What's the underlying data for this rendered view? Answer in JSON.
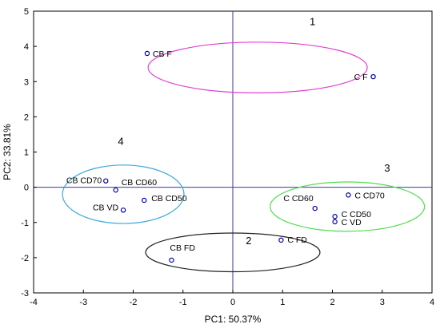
{
  "chart_data": {
    "type": "scatter",
    "title": "",
    "xlabel": "PC1: 50.37%",
    "ylabel": "PC2: 33.81%",
    "xlim": [
      -4,
      4
    ],
    "ylim": [
      -3,
      5
    ],
    "xticks": [
      -4,
      -3,
      -2,
      -1,
      0,
      1,
      2,
      3,
      4
    ],
    "yticks": [
      -3,
      -2,
      -1,
      0,
      1,
      2,
      3,
      4,
      5
    ],
    "grid": false,
    "reference_lines": {
      "x": 0,
      "y": 0
    },
    "point_color": "#0000aa",
    "points": [
      {
        "label": "CB F",
        "x": -1.72,
        "y": 3.8
      },
      {
        "label": "C F",
        "x": 2.82,
        "y": 3.14
      },
      {
        "label": "CB CD70",
        "x": -2.55,
        "y": 0.18
      },
      {
        "label": "CB CD60",
        "x": -2.35,
        "y": -0.08
      },
      {
        "label": "CB CD50",
        "x": -1.78,
        "y": -0.37
      },
      {
        "label": "CB VD",
        "x": -2.2,
        "y": -0.65
      },
      {
        "label": "C CD60",
        "x": 1.65,
        "y": -0.6
      },
      {
        "label": "C CD70",
        "x": 2.32,
        "y": -0.22
      },
      {
        "label": "C CD50",
        "x": 2.05,
        "y": -0.83
      },
      {
        "label": "C VD",
        "x": 2.05,
        "y": -0.98
      },
      {
        "label": "CB FD",
        "x": -1.23,
        "y": -2.07
      },
      {
        "label": "C FD",
        "x": 0.97,
        "y": -1.5
      }
    ],
    "groups": [
      {
        "label": "1",
        "color": "#e040d0",
        "center": [
          0.5,
          3.4
        ],
        "radius": [
          2.2,
          0.72
        ],
        "label_at": [
          1.6,
          4.6
        ]
      },
      {
        "label": "4",
        "color": "#3aa8e0",
        "center": [
          -2.2,
          -0.2
        ],
        "radius": [
          1.22,
          0.83
        ],
        "label_at": [
          -2.25,
          1.2
        ]
      },
      {
        "label": "3",
        "color": "#50dd50",
        "center": [
          2.3,
          -0.55
        ],
        "radius": [
          1.55,
          0.7
        ],
        "label_at": [
          3.1,
          0.45
        ]
      },
      {
        "label": "2",
        "color": "#222222",
        "center": [
          0.0,
          -1.85
        ],
        "radius": [
          1.75,
          0.55
        ],
        "label_at": [
          0.32,
          -1.62
        ]
      }
    ]
  }
}
